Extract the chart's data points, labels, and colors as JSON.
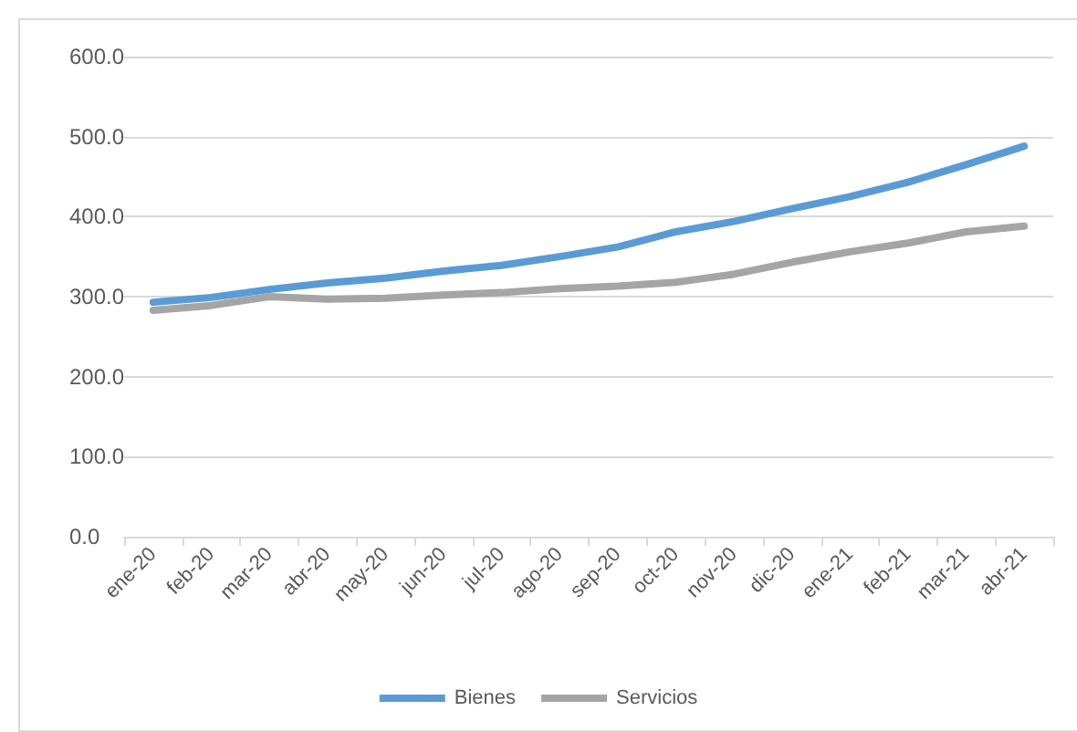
{
  "chart_data": {
    "type": "line",
    "categories": [
      "ene-20",
      "feb-20",
      "mar-20",
      "abr-20",
      "may-20",
      "jun-20",
      "jul-20",
      "ago-20",
      "sep-20",
      "oct-20",
      "nov-20",
      "dic-20",
      "ene-21",
      "feb-21",
      "mar-21",
      "abr-21"
    ],
    "series": [
      {
        "name": "Bienes",
        "color": "#5b9bd5",
        "values": [
          293,
          299,
          309,
          317,
          323,
          332,
          339,
          350,
          362,
          381,
          394,
          410,
          425,
          443,
          465,
          488
        ]
      },
      {
        "name": "Servicios",
        "color": "#a5a5a5",
        "values": [
          283,
          289,
          300,
          297,
          298,
          302,
          305,
          310,
          313,
          318,
          328,
          343,
          356,
          367,
          381,
          388
        ]
      }
    ],
    "ylim": [
      0,
      600
    ],
    "yticks": [
      {
        "value": 0,
        "label": "0.0"
      },
      {
        "value": 100,
        "label": "100.0"
      },
      {
        "value": 200,
        "label": "200.0"
      },
      {
        "value": 300,
        "label": "300.0"
      },
      {
        "value": 400,
        "label": "400.0"
      },
      {
        "value": 500,
        "label": "500.0"
      },
      {
        "value": 600,
        "label": "600.0"
      }
    ],
    "grid": "y",
    "legend": "bottom",
    "marker": "none",
    "line_style": "solid"
  }
}
